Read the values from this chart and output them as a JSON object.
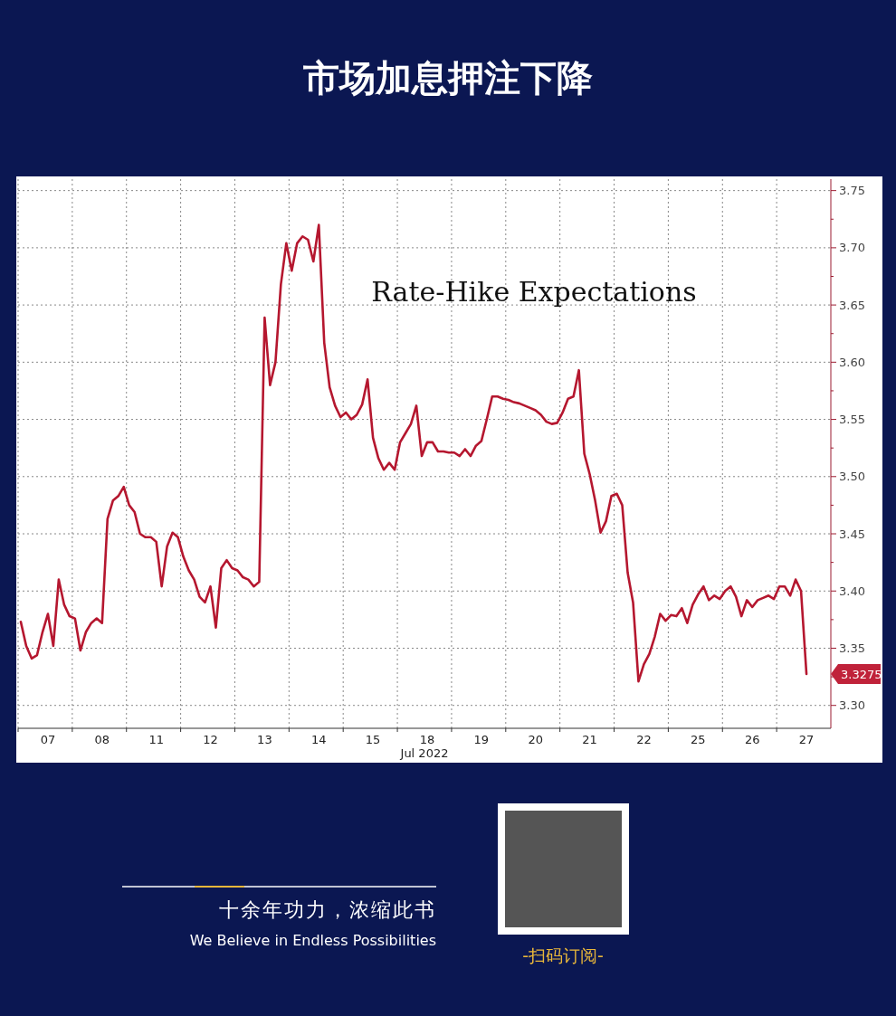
{
  "chart_data": {
    "type": "line",
    "title": "市场加息押注下降",
    "xlabel": "Jul 2022",
    "annotations": [
      "Rate-Hike Expectations",
      "3.3275",
      "十余年功力，浓缩此书",
      "We Believe in Endless Possibilities",
      "-扫码订阅-"
    ],
    "categories": [
      null,
      null,
      null,
      null,
      null,
      "07",
      null,
      null,
      null,
      null,
      null,
      null,
      null,
      null,
      null,
      "08",
      null,
      null,
      null,
      null,
      null,
      null,
      null,
      null,
      null,
      "11",
      null,
      null,
      null,
      null,
      null,
      null,
      null,
      null,
      null,
      "12",
      null,
      null,
      null,
      null,
      null,
      null,
      null,
      null,
      null,
      "13",
      null,
      null,
      null,
      null,
      null,
      null,
      null,
      null,
      null,
      "14",
      null,
      null,
      null,
      null,
      null,
      null,
      null,
      null,
      null,
      "15",
      null,
      null,
      null,
      null,
      null,
      null,
      null,
      null,
      null,
      "18",
      null,
      null,
      null,
      null,
      null,
      null,
      null,
      null,
      null,
      "19",
      null,
      null,
      null,
      null,
      null,
      null,
      null,
      null,
      null,
      "20",
      null,
      null,
      null,
      null,
      null,
      null,
      null,
      null,
      null,
      "21",
      null,
      null,
      null,
      null,
      null,
      null,
      null,
      null,
      null,
      "22",
      null,
      null,
      null,
      null,
      null,
      null,
      null,
      null,
      null,
      "25",
      null,
      null,
      null,
      null,
      null,
      null,
      null,
      null,
      null,
      "26",
      null,
      null,
      null,
      null,
      null,
      null,
      null,
      null,
      null,
      "27",
      null,
      null,
      null,
      null
    ],
    "series": [
      {
        "color": "#b5172f",
        "values": [
          3.373,
          3.352,
          3.341,
          3.344,
          3.364,
          3.38,
          3.352,
          3.41,
          3.388,
          3.378,
          3.376,
          3.348,
          3.364,
          3.372,
          3.376,
          3.372,
          3.463,
          3.479,
          3.483,
          3.491,
          3.475,
          3.469,
          3.45,
          3.447,
          3.447,
          3.443,
          3.404,
          3.439,
          3.451,
          3.447,
          3.43,
          3.418,
          3.41,
          3.395,
          3.39,
          3.404,
          3.368,
          3.42,
          3.427,
          3.42,
          3.418,
          3.412,
          3.41,
          3.404,
          3.408,
          3.639,
          3.58,
          3.6,
          3.668,
          3.704,
          3.68,
          3.704,
          3.71,
          3.707,
          3.688,
          3.72,
          3.617,
          3.578,
          3.562,
          3.552,
          3.556,
          3.55,
          3.554,
          3.563,
          3.585,
          3.534,
          3.516,
          3.506,
          3.512,
          3.506,
          3.53,
          3.538,
          3.546,
          3.562,
          3.518,
          3.53,
          3.53,
          3.522,
          3.522,
          3.521,
          3.521,
          3.518,
          3.524,
          3.518,
          3.527,
          3.531,
          3.55,
          3.57,
          3.57,
          3.568,
          3.567,
          3.565,
          3.564,
          3.562,
          3.56,
          3.558,
          3.554,
          3.548,
          3.546,
          3.547,
          3.556,
          3.568,
          3.57,
          3.593,
          3.52,
          3.502,
          3.479,
          3.451,
          3.461,
          3.483,
          3.485,
          3.475,
          3.416,
          3.39,
          3.321,
          3.336,
          3.345,
          3.36,
          3.38,
          3.374,
          3.379,
          3.378,
          3.385,
          3.372,
          3.388,
          3.397,
          3.404,
          3.392,
          3.396,
          3.393,
          3.4,
          3.404,
          3.395,
          3.378,
          3.392,
          3.386,
          3.392,
          3.394,
          3.396,
          3.393,
          3.404,
          3.404,
          3.396,
          3.41,
          3.4,
          3.3275,
          null,
          null,
          null,
          null
        ]
      }
    ],
    "ylim": [
      3.28,
      3.76
    ],
    "yticks": [
      {
        "value": 3.3,
        "label": "3.30"
      },
      {
        "value": 3.325,
        "label": null
      },
      {
        "value": 3.35,
        "label": "3.35"
      },
      {
        "value": 3.375,
        "label": null
      },
      {
        "value": 3.4,
        "label": "3.40"
      },
      {
        "value": 3.425,
        "label": null
      },
      {
        "value": 3.45,
        "label": "3.45"
      },
      {
        "value": 3.475,
        "label": null
      },
      {
        "value": 3.5,
        "label": "3.50"
      },
      {
        "value": 3.525,
        "label": null
      },
      {
        "value": 3.55,
        "label": "3.55"
      },
      {
        "value": 3.575,
        "label": null
      },
      {
        "value": 3.6,
        "label": "3.60"
      },
      {
        "value": 3.625,
        "label": null
      },
      {
        "value": 3.65,
        "label": "3.65"
      },
      {
        "value": 3.675,
        "label": null
      },
      {
        "value": 3.7,
        "label": "3.70"
      },
      {
        "value": 3.725,
        "label": null
      },
      {
        "value": 3.75,
        "label": "3.75"
      }
    ],
    "grid": true,
    "marker": "none",
    "line_style": "solid"
  }
}
